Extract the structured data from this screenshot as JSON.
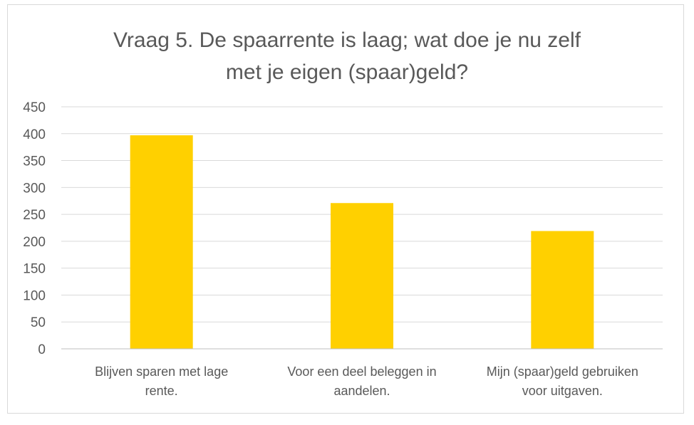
{
  "chart_data": {
    "type": "bar",
    "title_lines": [
      "Vraag 5. De spaarrente is laag; wat doe je nu zelf",
      "met je eigen (spaar)geld?"
    ],
    "categories": [
      [
        "Blijven sparen met lage",
        "rente."
      ],
      [
        "Voor een deel beleggen in",
        "aandelen."
      ],
      [
        "Mijn (spaar)geld gebruiken",
        "voor uitgaven."
      ]
    ],
    "values": [
      397,
      271,
      219
    ],
    "ylim": [
      0,
      450
    ],
    "yticks": [
      0,
      50,
      100,
      150,
      200,
      250,
      300,
      350,
      400,
      450
    ],
    "xlabel": "",
    "ylabel": "",
    "grid": true,
    "legend": false,
    "colors": {
      "bar": "#FFD000",
      "grid": "#d9d9d9",
      "axis": "#bfbfbf",
      "text": "#595959"
    }
  }
}
